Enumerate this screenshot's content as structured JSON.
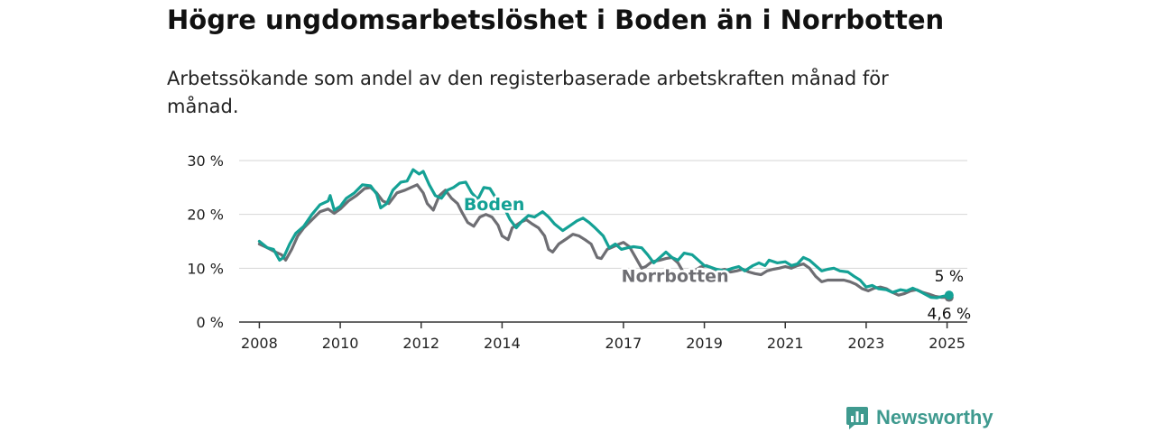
{
  "title": "Högre ungdomsarbetslöshet i Boden än i Norrbotten",
  "subtitle": "Arbetssökande som andel av den registerbaserade arbetskraften månad för månad.",
  "brand": {
    "name": "Newsworthy"
  },
  "colors": {
    "boden": "#14a195",
    "norrbotten": "#6e6e73",
    "grid": "#d6d6d6",
    "axis": "#333333"
  },
  "chart_data": {
    "type": "line",
    "ylim": [
      0,
      30
    ],
    "xlim": [
      2007.5,
      2025.5
    ],
    "y_ticks": [
      0,
      10,
      20,
      30
    ],
    "y_tick_labels": [
      "0 %",
      "10 %",
      "20 %",
      "30 %"
    ],
    "x_ticks": [
      2008,
      2010,
      2012,
      2014,
      2017,
      2019,
      2021,
      2023,
      2025
    ],
    "x_tick_labels": [
      "2008",
      "2010",
      "2012",
      "2014",
      "2017",
      "2019",
      "2021",
      "2023",
      "2025"
    ],
    "grid": true,
    "series": [
      {
        "name": "Boden",
        "color": "#14a195",
        "label_position": [
          2013.05,
          20.8
        ],
        "end_label": "5 %",
        "end_value": 5,
        "points": [
          [
            2008.0,
            15.0
          ],
          [
            2008.2,
            13.8
          ],
          [
            2008.35,
            13.5
          ],
          [
            2008.5,
            11.5
          ],
          [
            2008.6,
            12.0
          ],
          [
            2008.75,
            14.5
          ],
          [
            2008.9,
            16.5
          ],
          [
            2009.1,
            17.8
          ],
          [
            2009.3,
            20.0
          ],
          [
            2009.5,
            21.8
          ],
          [
            2009.7,
            22.5
          ],
          [
            2009.75,
            23.5
          ],
          [
            2009.85,
            20.8
          ],
          [
            2010.0,
            21.5
          ],
          [
            2010.15,
            23.0
          ],
          [
            2010.35,
            24.0
          ],
          [
            2010.55,
            25.5
          ],
          [
            2010.75,
            25.3
          ],
          [
            2010.9,
            23.8
          ],
          [
            2011.0,
            21.2
          ],
          [
            2011.15,
            22.0
          ],
          [
            2011.3,
            24.5
          ],
          [
            2011.5,
            26.0
          ],
          [
            2011.65,
            26.2
          ],
          [
            2011.8,
            28.3
          ],
          [
            2011.95,
            27.5
          ],
          [
            2012.05,
            28.0
          ],
          [
            2012.2,
            25.5
          ],
          [
            2012.35,
            23.5
          ],
          [
            2012.5,
            23.0
          ],
          [
            2012.65,
            24.5
          ],
          [
            2012.8,
            25.0
          ],
          [
            2012.95,
            25.8
          ],
          [
            2013.1,
            26.0
          ],
          [
            2013.25,
            24.0
          ],
          [
            2013.4,
            22.8
          ],
          [
            2013.55,
            25.0
          ],
          [
            2013.7,
            24.8
          ],
          [
            2013.85,
            23.0
          ],
          [
            2014.0,
            22.0
          ],
          [
            2014.2,
            19.0
          ],
          [
            2014.35,
            17.5
          ],
          [
            2014.5,
            18.8
          ],
          [
            2014.65,
            19.8
          ],
          [
            2014.8,
            19.5
          ],
          [
            2015.0,
            20.5
          ],
          [
            2015.15,
            19.5
          ],
          [
            2015.3,
            18.2
          ],
          [
            2015.5,
            17.0
          ],
          [
            2015.7,
            18.0
          ],
          [
            2015.85,
            18.8
          ],
          [
            2016.0,
            19.3
          ],
          [
            2016.15,
            18.5
          ],
          [
            2016.3,
            17.5
          ],
          [
            2016.5,
            16.0
          ],
          [
            2016.65,
            13.8
          ],
          [
            2016.8,
            14.5
          ],
          [
            2016.95,
            13.5
          ],
          [
            2017.1,
            13.8
          ],
          [
            2017.25,
            14.0
          ],
          [
            2017.45,
            13.8
          ],
          [
            2017.6,
            12.5
          ],
          [
            2017.75,
            11.0
          ],
          [
            2017.9,
            12.0
          ],
          [
            2018.05,
            13.0
          ],
          [
            2018.2,
            12.0
          ],
          [
            2018.35,
            11.5
          ],
          [
            2018.5,
            12.8
          ],
          [
            2018.7,
            12.5
          ],
          [
            2018.85,
            11.5
          ],
          [
            2019.0,
            10.5
          ],
          [
            2019.15,
            10.2
          ],
          [
            2019.3,
            9.8
          ],
          [
            2019.5,
            9.5
          ],
          [
            2019.7,
            10.0
          ],
          [
            2019.85,
            10.3
          ],
          [
            2020.0,
            9.5
          ],
          [
            2020.2,
            10.5
          ],
          [
            2020.35,
            11.0
          ],
          [
            2020.5,
            10.5
          ],
          [
            2020.6,
            11.5
          ],
          [
            2020.8,
            11.0
          ],
          [
            2021.0,
            11.2
          ],
          [
            2021.15,
            10.5
          ],
          [
            2021.3,
            10.8
          ],
          [
            2021.45,
            12.0
          ],
          [
            2021.6,
            11.5
          ],
          [
            2021.75,
            10.5
          ],
          [
            2021.9,
            9.5
          ],
          [
            2022.05,
            9.8
          ],
          [
            2022.2,
            10.0
          ],
          [
            2022.35,
            9.5
          ],
          [
            2022.55,
            9.3
          ],
          [
            2022.7,
            8.5
          ],
          [
            2022.85,
            7.8
          ],
          [
            2023.0,
            6.5
          ],
          [
            2023.15,
            6.8
          ],
          [
            2023.3,
            6.2
          ],
          [
            2023.5,
            6.0
          ],
          [
            2023.65,
            5.5
          ],
          [
            2023.85,
            6.0
          ],
          [
            2024.0,
            5.8
          ],
          [
            2024.15,
            6.3
          ],
          [
            2024.3,
            5.8
          ],
          [
            2024.45,
            5.2
          ],
          [
            2024.6,
            4.6
          ],
          [
            2024.75,
            4.5
          ],
          [
            2024.9,
            4.8
          ],
          [
            2025.05,
            5.0
          ]
        ]
      },
      {
        "name": "Norrbotten",
        "color": "#6e6e73",
        "label_position": [
          2016.95,
          7.5
        ],
        "end_label": "4,6 %",
        "end_value": 4.6,
        "points": [
          [
            2008.0,
            14.5
          ],
          [
            2008.2,
            13.8
          ],
          [
            2008.4,
            13.0
          ],
          [
            2008.55,
            12.5
          ],
          [
            2008.65,
            11.5
          ],
          [
            2008.8,
            13.5
          ],
          [
            2008.95,
            16.0
          ],
          [
            2009.1,
            17.5
          ],
          [
            2009.3,
            19.0
          ],
          [
            2009.5,
            20.5
          ],
          [
            2009.7,
            21.0
          ],
          [
            2009.85,
            20.2
          ],
          [
            2010.0,
            21.0
          ],
          [
            2010.2,
            22.5
          ],
          [
            2010.4,
            23.5
          ],
          [
            2010.6,
            24.8
          ],
          [
            2010.75,
            25.0
          ],
          [
            2010.9,
            24.0
          ],
          [
            2011.05,
            22.5
          ],
          [
            2011.2,
            22.0
          ],
          [
            2011.4,
            24.0
          ],
          [
            2011.6,
            24.5
          ],
          [
            2011.75,
            25.0
          ],
          [
            2011.9,
            25.5
          ],
          [
            2012.05,
            24.0
          ],
          [
            2012.15,
            22.0
          ],
          [
            2012.3,
            20.8
          ],
          [
            2012.45,
            23.5
          ],
          [
            2012.6,
            24.5
          ],
          [
            2012.75,
            23.0
          ],
          [
            2012.9,
            22.0
          ],
          [
            2013.0,
            20.5
          ],
          [
            2013.15,
            18.5
          ],
          [
            2013.3,
            17.8
          ],
          [
            2013.45,
            19.5
          ],
          [
            2013.6,
            20.0
          ],
          [
            2013.75,
            19.5
          ],
          [
            2013.9,
            18.0
          ],
          [
            2014.0,
            16.0
          ],
          [
            2014.15,
            15.3
          ],
          [
            2014.25,
            17.5
          ],
          [
            2014.45,
            18.5
          ],
          [
            2014.6,
            19.0
          ],
          [
            2014.75,
            18.2
          ],
          [
            2014.9,
            17.5
          ],
          [
            2015.05,
            16.0
          ],
          [
            2015.15,
            13.5
          ],
          [
            2015.25,
            13.0
          ],
          [
            2015.4,
            14.5
          ],
          [
            2015.6,
            15.5
          ],
          [
            2015.75,
            16.3
          ],
          [
            2015.9,
            16.0
          ],
          [
            2016.05,
            15.3
          ],
          [
            2016.2,
            14.5
          ],
          [
            2016.35,
            12.0
          ],
          [
            2016.45,
            11.8
          ],
          [
            2016.6,
            13.5
          ],
          [
            2016.75,
            14.0
          ],
          [
            2016.9,
            14.5
          ],
          [
            2017.0,
            14.8
          ],
          [
            2017.15,
            14.0
          ],
          [
            2017.3,
            12.0
          ],
          [
            2017.45,
            10.0
          ],
          [
            2017.55,
            10.3
          ],
          [
            2017.7,
            11.2
          ],
          [
            2017.9,
            11.5
          ],
          [
            2018.05,
            11.8
          ],
          [
            2018.2,
            12.0
          ],
          [
            2018.35,
            11.0
          ],
          [
            2018.5,
            9.0
          ],
          [
            2018.6,
            8.5
          ],
          [
            2018.75,
            9.5
          ],
          [
            2018.9,
            10.2
          ],
          [
            2019.05,
            10.5
          ],
          [
            2019.2,
            10.0
          ],
          [
            2019.35,
            9.5
          ],
          [
            2019.5,
            9.8
          ],
          [
            2019.65,
            9.3
          ],
          [
            2019.8,
            9.5
          ],
          [
            2019.95,
            9.8
          ],
          [
            2020.1,
            9.3
          ],
          [
            2020.25,
            9.0
          ],
          [
            2020.4,
            8.8
          ],
          [
            2020.55,
            9.5
          ],
          [
            2020.7,
            9.8
          ],
          [
            2020.85,
            10.0
          ],
          [
            2021.0,
            10.3
          ],
          [
            2021.15,
            10.0
          ],
          [
            2021.3,
            10.5
          ],
          [
            2021.45,
            10.8
          ],
          [
            2021.6,
            10.0
          ],
          [
            2021.75,
            8.5
          ],
          [
            2021.9,
            7.5
          ],
          [
            2022.05,
            7.8
          ],
          [
            2022.25,
            7.8
          ],
          [
            2022.45,
            7.8
          ],
          [
            2022.6,
            7.5
          ],
          [
            2022.75,
            7.0
          ],
          [
            2022.9,
            6.2
          ],
          [
            2023.05,
            5.8
          ],
          [
            2023.2,
            6.3
          ],
          [
            2023.35,
            6.5
          ],
          [
            2023.5,
            6.2
          ],
          [
            2023.65,
            5.5
          ],
          [
            2023.8,
            5.0
          ],
          [
            2023.95,
            5.3
          ],
          [
            2024.1,
            5.8
          ],
          [
            2024.25,
            6.0
          ],
          [
            2024.4,
            5.5
          ],
          [
            2024.55,
            5.2
          ],
          [
            2024.7,
            4.8
          ],
          [
            2024.85,
            4.6
          ],
          [
            2025.05,
            4.6
          ]
        ]
      }
    ]
  }
}
